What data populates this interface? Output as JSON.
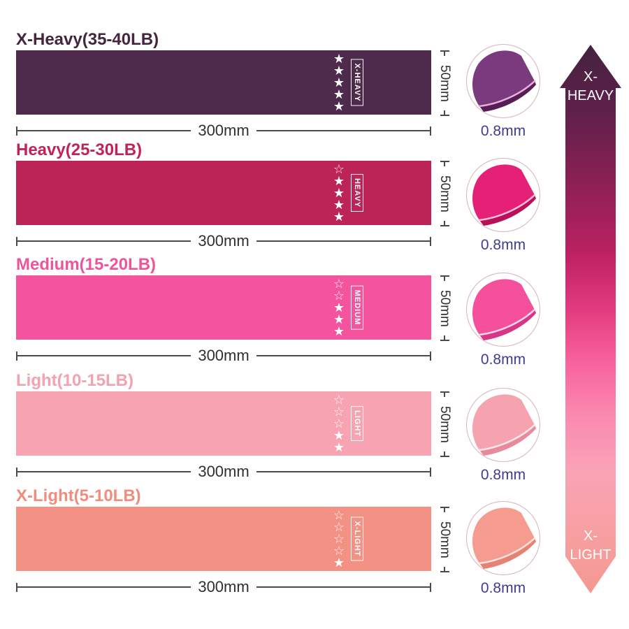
{
  "dimensions": {
    "width_label": "300mm",
    "height_label": "50mm",
    "thickness_label": "0.8mm"
  },
  "colors": {
    "dimension_line": "#4a4a4a",
    "dimension_text": "#2f2f2f",
    "thickness_text": "#3e3c90"
  },
  "rows": [
    {
      "title": "X-Heavy(35-40LB)",
      "title_color": "#43273e",
      "band_color": "#4e2b4c",
      "tag": "X-HEAVY",
      "rating": 5,
      "circle": {
        "main": "#7c3a7e",
        "under": "#571e55",
        "edge": "#e9b0dc"
      }
    },
    {
      "title": "Heavy(25-30LB)",
      "title_color": "#c02457",
      "band_color": "#bc2457",
      "tag": "HEAVY",
      "rating": 4,
      "circle": {
        "main": "#e52077",
        "under": "#b91059",
        "edge": "#fbc0da"
      }
    },
    {
      "title": "Medium(15-20LB)",
      "title_color": "#ef549b",
      "band_color": "#f4549d",
      "tag": "MEDIUM",
      "rating": 3,
      "circle": {
        "main": "#f4509c",
        "under": "#d83488",
        "edge": "#ffd9ea"
      }
    },
    {
      "title": "Light(10-15LB)",
      "title_color": "#f4a1b0",
      "band_color": "#f7a3b2",
      "tag": "LIGHT",
      "rating": 2,
      "circle": {
        "main": "#f6a3b0",
        "under": "#e98a9c",
        "edge": "#ffe9ee"
      }
    },
    {
      "title": "X-Light(5-10LB)",
      "title_color": "#ef8d7e",
      "band_color": "#f39184",
      "tag": "X-LIGHT",
      "rating": 1,
      "circle": {
        "main": "#f59b8f",
        "under": "#e58275",
        "edge": "#ffe3da"
      }
    }
  ],
  "scale_arrow": {
    "top_label_line1": "X-",
    "top_label_line2": "HEAVY",
    "bottom_label_line1": "X-",
    "bottom_label_line2": "LIGHT",
    "gradient": [
      "#44233f",
      "#5e204a",
      "#8c2054",
      "#bc2162",
      "#e23a7e",
      "#f8639d",
      "#fb8bb1",
      "#f9a3b6",
      "#f7a0a4",
      "#f49890"
    ]
  }
}
